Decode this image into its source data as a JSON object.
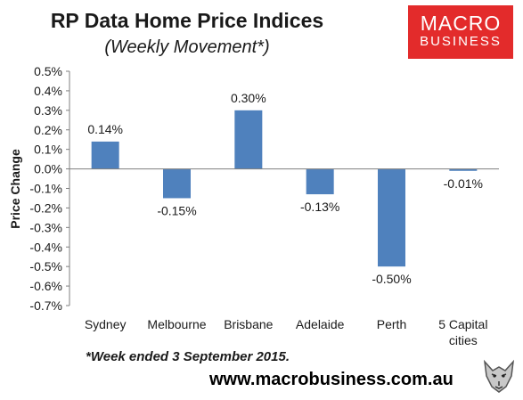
{
  "header": {
    "title": "RP Data Home Price Indices",
    "subtitle": "(Weekly Movement*)"
  },
  "logo": {
    "line1": "MACRO",
    "line2": "BUSINESS",
    "color": "#e32b2b"
  },
  "footer": {
    "footnote": "*Week ended 3 September 2015.",
    "url": "www.macrobusiness.com.au",
    "mascot_icon": "wolf-icon"
  },
  "chart_data": {
    "type": "bar",
    "ylabel": "Price Change",
    "xlabel": "",
    "categories": [
      "Sydney",
      "Melbourne",
      "Brisbane",
      "Adelaide",
      "Perth",
      "5 Capital cities"
    ],
    "values": [
      0.14,
      -0.15,
      0.3,
      -0.13,
      -0.5,
      -0.01
    ],
    "value_labels": [
      "0.14%",
      "-0.15%",
      "0.30%",
      "-0.13%",
      "-0.50%",
      "-0.01%"
    ],
    "ylim": [
      -0.7,
      0.5
    ],
    "yticks": [
      0.5,
      0.4,
      0.3,
      0.2,
      0.1,
      0.0,
      -0.1,
      -0.2,
      -0.3,
      -0.4,
      -0.5,
      -0.6,
      -0.7
    ],
    "ytick_labels": [
      "0.5%",
      "0.4%",
      "0.3%",
      "0.2%",
      "0.1%",
      "0.0%",
      "-0.1%",
      "-0.2%",
      "-0.3%",
      "-0.4%",
      "-0.5%",
      "-0.6%",
      "-0.7%"
    ],
    "bar_color": "#4f81bd",
    "grid": false,
    "legend": "none"
  }
}
